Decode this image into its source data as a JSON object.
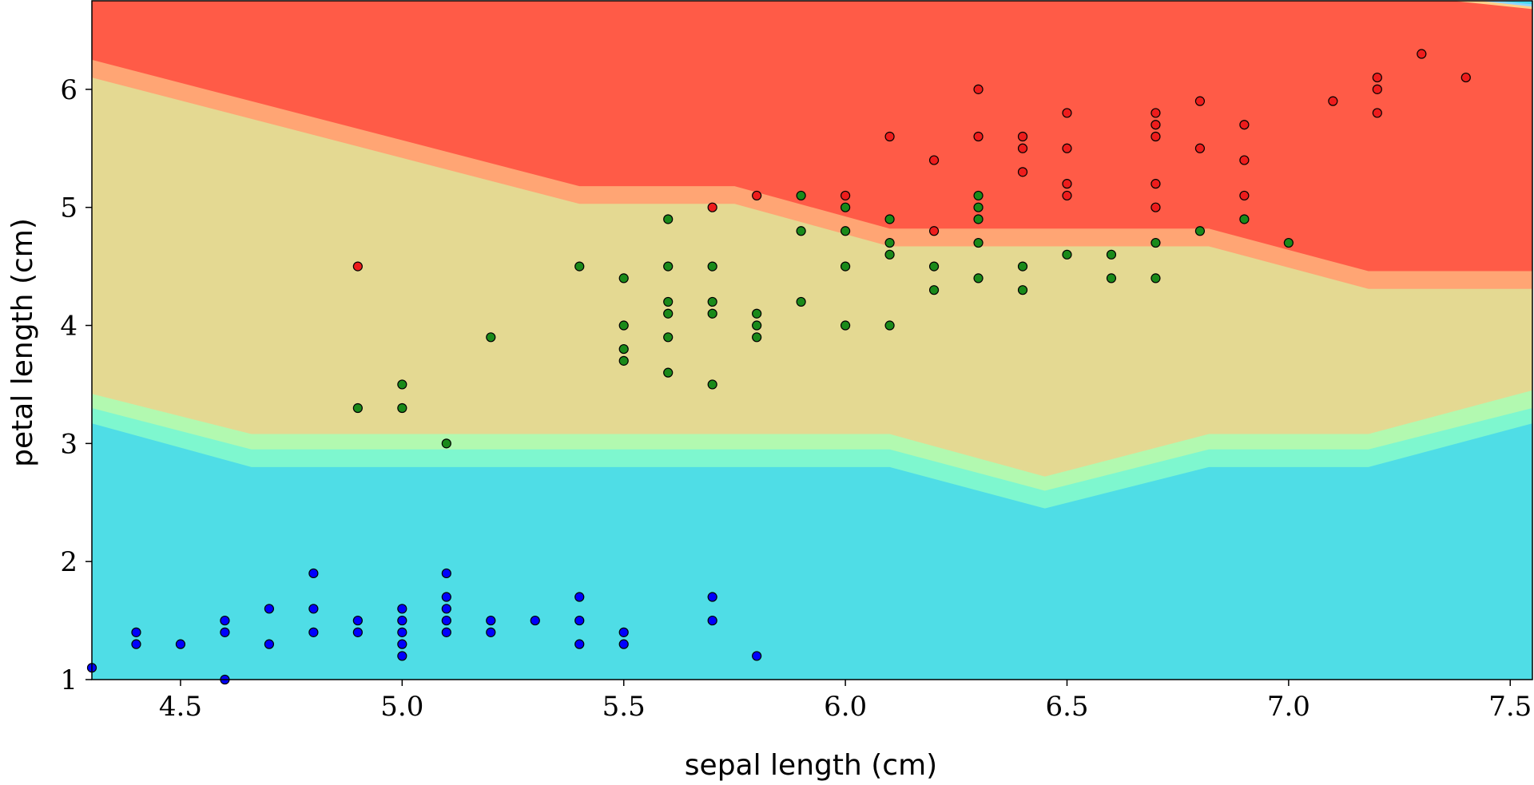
{
  "chart_data": {
    "type": "scatter",
    "xlabel": "sepal length (cm)",
    "ylabel": "petal length (cm)",
    "xlim": [
      4.3,
      7.55
    ],
    "ylim": [
      1.0,
      6.75
    ],
    "xticks": [
      4.5,
      5.0,
      5.5,
      6.0,
      6.5,
      7.0,
      7.5
    ],
    "xtick_labels": [
      "4.5",
      "5.0",
      "5.5",
      "6.0",
      "6.5",
      "7.0",
      "7.5"
    ],
    "yticks": [
      1,
      2,
      3,
      4,
      5,
      6
    ],
    "ytick_labels": [
      "1",
      "2",
      "3",
      "4",
      "5",
      "6"
    ],
    "grid": false,
    "legend": "none",
    "background": {
      "type": "decision-regions",
      "colors": {
        "low_region": "#4fdde6",
        "low_band_1": "#7ef7cf",
        "low_band_2": "#b2f9b0",
        "middle_region": "#e4d992",
        "high_band": "#ffa574",
        "high_region": "#ff5b47",
        "corner_band_1": "#ffcf8a",
        "corner_band_2": "#8fd5ff",
        "corner_band_3": "#45d9f0"
      },
      "boundaries": [
        {
          "x": [
            4.3,
            4.66,
            5.4,
            5.75,
            6.1,
            6.45,
            6.82,
            7.18,
            7.55
          ],
          "y": [
            3.42,
            3.08,
            3.08,
            3.08,
            3.08,
            2.72,
            3.08,
            3.08,
            3.45
          ]
        },
        {
          "x": [
            4.3,
            4.66,
            5.4,
            5.75,
            6.1,
            6.45,
            6.82,
            7.18,
            7.55
          ],
          "y": [
            3.3,
            2.95,
            2.95,
            2.95,
            2.95,
            2.6,
            2.95,
            2.95,
            3.3
          ]
        },
        {
          "x": [
            4.3,
            4.66,
            5.4,
            5.75,
            6.1,
            6.45,
            6.82,
            7.18,
            7.55
          ],
          "y": [
            3.17,
            2.8,
            2.8,
            2.8,
            2.8,
            2.45,
            2.8,
            2.8,
            3.17
          ]
        },
        {
          "x": [
            4.3,
            5.4,
            5.75,
            6.1,
            6.82,
            7.18,
            7.55
          ],
          "y": [
            6.25,
            5.18,
            5.18,
            4.82,
            4.82,
            4.46,
            4.46
          ]
        },
        {
          "x": [
            4.3,
            5.4,
            5.75,
            6.1,
            6.82,
            7.18,
            7.55
          ],
          "y": [
            6.1,
            5.03,
            5.03,
            4.67,
            4.67,
            4.31,
            4.31
          ]
        }
      ]
    },
    "series": [
      {
        "color": "#0000ff",
        "points": [
          [
            4.3,
            1.1
          ],
          [
            4.4,
            1.3
          ],
          [
            4.4,
            1.4
          ],
          [
            4.5,
            1.3
          ],
          [
            4.6,
            1.0
          ],
          [
            4.6,
            1.4
          ],
          [
            4.6,
            1.5
          ],
          [
            4.7,
            1.3
          ],
          [
            4.7,
            1.6
          ],
          [
            4.8,
            1.4
          ],
          [
            4.8,
            1.6
          ],
          [
            4.8,
            1.9
          ],
          [
            4.9,
            1.4
          ],
          [
            4.9,
            1.5
          ],
          [
            5.0,
            1.2
          ],
          [
            5.0,
            1.3
          ],
          [
            5.0,
            1.4
          ],
          [
            5.0,
            1.5
          ],
          [
            5.0,
            1.6
          ],
          [
            5.1,
            1.4
          ],
          [
            5.1,
            1.5
          ],
          [
            5.1,
            1.6
          ],
          [
            5.1,
            1.7
          ],
          [
            5.1,
            1.9
          ],
          [
            5.2,
            1.4
          ],
          [
            5.2,
            1.5
          ],
          [
            5.3,
            1.5
          ],
          [
            5.4,
            1.3
          ],
          [
            5.4,
            1.5
          ],
          [
            5.4,
            1.7
          ],
          [
            5.5,
            1.3
          ],
          [
            5.5,
            1.4
          ],
          [
            5.7,
            1.5
          ],
          [
            5.7,
            1.7
          ],
          [
            5.8,
            1.2
          ]
        ]
      },
      {
        "color": "#1a8a1a",
        "points": [
          [
            4.9,
            3.3
          ],
          [
            5.0,
            3.3
          ],
          [
            5.0,
            3.5
          ],
          [
            5.1,
            3.0
          ],
          [
            5.2,
            3.9
          ],
          [
            5.4,
            4.5
          ],
          [
            5.5,
            3.7
          ],
          [
            5.5,
            3.8
          ],
          [
            5.5,
            4.0
          ],
          [
            5.5,
            4.4
          ],
          [
            5.6,
            3.6
          ],
          [
            5.6,
            3.9
          ],
          [
            5.6,
            4.1
          ],
          [
            5.6,
            4.2
          ],
          [
            5.6,
            4.5
          ],
          [
            5.6,
            4.9
          ],
          [
            5.7,
            3.5
          ],
          [
            5.7,
            4.1
          ],
          [
            5.7,
            4.2
          ],
          [
            5.7,
            4.5
          ],
          [
            5.8,
            3.9
          ],
          [
            5.8,
            4.0
          ],
          [
            5.8,
            4.1
          ],
          [
            5.9,
            4.2
          ],
          [
            5.9,
            4.8
          ],
          [
            5.9,
            5.1
          ],
          [
            6.0,
            4.0
          ],
          [
            6.0,
            4.5
          ],
          [
            6.0,
            4.8
          ],
          [
            6.0,
            5.0
          ],
          [
            6.1,
            4.0
          ],
          [
            6.1,
            4.6
          ],
          [
            6.1,
            4.7
          ],
          [
            6.1,
            4.9
          ],
          [
            6.2,
            4.3
          ],
          [
            6.2,
            4.5
          ],
          [
            6.3,
            4.4
          ],
          [
            6.3,
            4.7
          ],
          [
            6.3,
            4.9
          ],
          [
            6.3,
            5.0
          ],
          [
            6.3,
            5.1
          ],
          [
            6.4,
            4.3
          ],
          [
            6.4,
            4.5
          ],
          [
            6.5,
            4.6
          ],
          [
            6.6,
            4.4
          ],
          [
            6.6,
            4.6
          ],
          [
            6.7,
            4.4
          ],
          [
            6.7,
            4.7
          ],
          [
            6.8,
            4.8
          ],
          [
            6.9,
            4.9
          ],
          [
            7.0,
            4.7
          ]
        ]
      },
      {
        "color": "#ee1c1c",
        "points": [
          [
            4.9,
            4.5
          ],
          [
            5.7,
            5.0
          ],
          [
            5.8,
            5.1
          ],
          [
            6.0,
            5.1
          ],
          [
            6.1,
            5.6
          ],
          [
            6.2,
            4.8
          ],
          [
            6.2,
            5.4
          ],
          [
            6.3,
            5.6
          ],
          [
            6.3,
            6.0
          ],
          [
            6.4,
            5.3
          ],
          [
            6.4,
            5.5
          ],
          [
            6.4,
            5.6
          ],
          [
            6.5,
            5.1
          ],
          [
            6.5,
            5.2
          ],
          [
            6.5,
            5.5
          ],
          [
            6.5,
            5.8
          ],
          [
            6.7,
            5.0
          ],
          [
            6.7,
            5.2
          ],
          [
            6.7,
            5.6
          ],
          [
            6.7,
            5.7
          ],
          [
            6.7,
            5.8
          ],
          [
            6.8,
            5.5
          ],
          [
            6.8,
            5.9
          ],
          [
            6.9,
            5.1
          ],
          [
            6.9,
            5.4
          ],
          [
            6.9,
            5.7
          ],
          [
            7.1,
            5.9
          ],
          [
            7.2,
            5.8
          ],
          [
            7.2,
            6.0
          ],
          [
            7.2,
            6.1
          ],
          [
            7.3,
            6.3
          ],
          [
            7.4,
            6.1
          ]
        ]
      }
    ]
  }
}
